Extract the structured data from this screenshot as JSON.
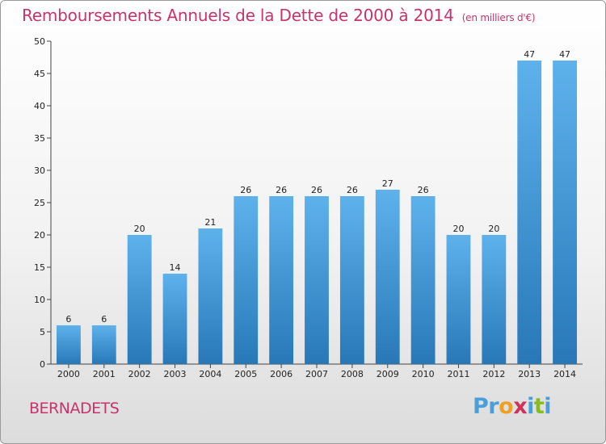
{
  "header": {
    "title": "Remboursements Annuels de la Dette de 2000 à 2014",
    "unit": "(en milliers d'€)"
  },
  "footer": {
    "commune": "BERNADETS",
    "logo_letters": [
      {
        "ch": "P",
        "color": "#4a9fd8"
      },
      {
        "ch": "r",
        "color": "#4a9fd8"
      },
      {
        "ch": "o",
        "color": "#f0a020"
      },
      {
        "ch": "x",
        "color": "#d0305a"
      },
      {
        "ch": "i",
        "color": "#4a9fd8"
      },
      {
        "ch": "t",
        "color": "#88bb22"
      },
      {
        "ch": "i",
        "color": "#4a9fd8"
      }
    ]
  },
  "chart_data": {
    "type": "bar",
    "title": "Remboursements Annuels de la Dette de 2000 à 2014",
    "categories": [
      "2000",
      "2001",
      "2002",
      "2003",
      "2004",
      "2005",
      "2006",
      "2007",
      "2008",
      "2009",
      "2010",
      "2011",
      "2012",
      "2013",
      "2014"
    ],
    "values": [
      6,
      6,
      20,
      14,
      21,
      26,
      26,
      26,
      26,
      27,
      26,
      20,
      20,
      47,
      47
    ],
    "ylim": [
      0,
      50
    ],
    "yticks": [
      0,
      5,
      10,
      15,
      20,
      25,
      30,
      35,
      40,
      45,
      50
    ],
    "grid": false,
    "bar_color": "#5aaee8",
    "xlabel": "",
    "ylabel": ""
  }
}
